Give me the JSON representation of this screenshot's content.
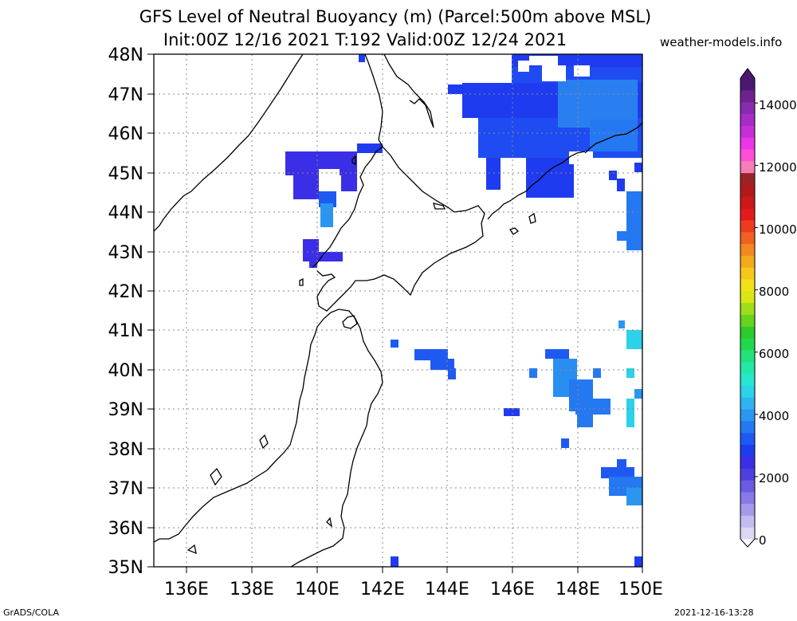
{
  "title": {
    "line1": "GFS Level of Neutral Buoyancy (m) (Parcel:500m above MSL)",
    "line2": "Init:00Z 12/16 2021 T:192 Valid:00Z 12/24 2021"
  },
  "brand": "weather-models.info",
  "footer": {
    "left": "GrADS/COLA",
    "right": "2021-12-16-13:28"
  },
  "map": {
    "lat_labels": [
      "48N",
      "47N",
      "46N",
      "45N",
      "44N",
      "43N",
      "42N",
      "41N",
      "40N",
      "39N",
      "38N",
      "37N",
      "36N",
      "35N"
    ],
    "lon_labels": [
      "136E",
      "138E",
      "140E",
      "142E",
      "144E",
      "146E",
      "148E",
      "150E"
    ]
  },
  "colorbar": {
    "labels": [
      "14000",
      "12000",
      "10000",
      "8000",
      "6000",
      "4000",
      "2000",
      "0"
    ],
    "colors": [
      "#dcd6f4",
      "#c2bcef",
      "#a39bea",
      "#8779e6",
      "#6a5ae4",
      "#4f3ee0",
      "#3a2ee6",
      "#1f3bf0",
      "#1e5af2",
      "#2478f2",
      "#2a96f0",
      "#2fb4ee",
      "#2cd2e8",
      "#26e6cf",
      "#24e8a8",
      "#22e27c",
      "#22d84a",
      "#2ccc2c",
      "#66d31f",
      "#9fdc1a",
      "#d8e614",
      "#f2e018",
      "#f5c81a",
      "#f4a81c",
      "#f2881e",
      "#f06020",
      "#ec3c20",
      "#e41a1c",
      "#cc1818",
      "#b01a1a",
      "#9a2424",
      "#f47fb4",
      "#ff4fd8",
      "#ea36e6",
      "#c62fd8",
      "#a62cc6",
      "#8a2aae",
      "#6e2290",
      "#4a1870"
    ]
  }
}
